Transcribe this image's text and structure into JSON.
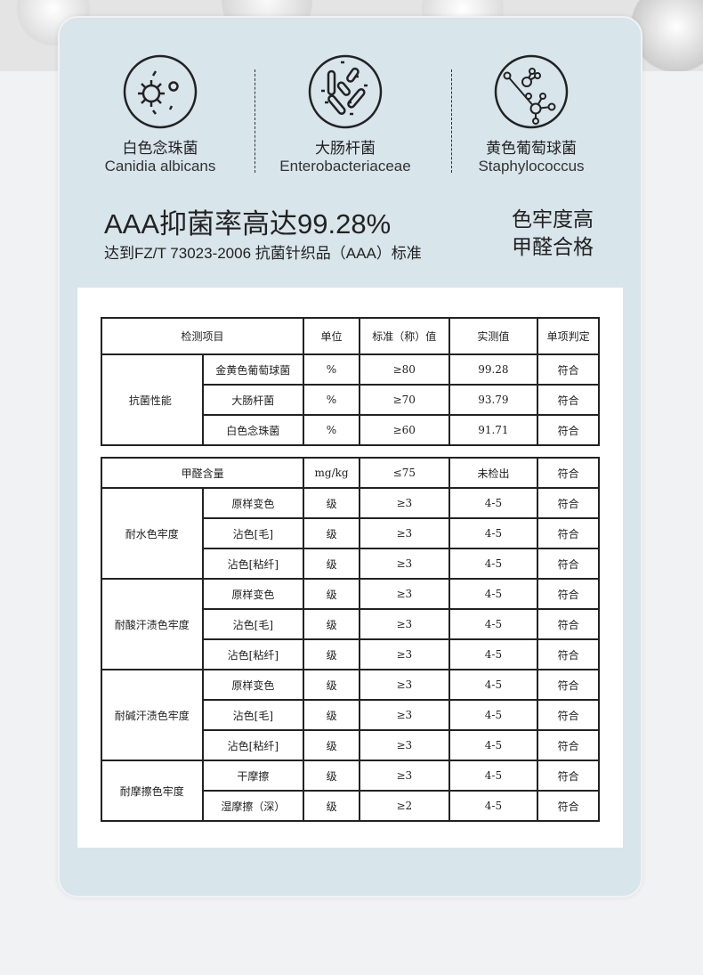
{
  "bacteria": [
    {
      "cn": "白色念珠菌",
      "en": "Canidia albicans",
      "icon": "fungus-icon"
    },
    {
      "cn": "大肠杆菌",
      "en": "Enterobacteriaceae",
      "icon": "bacilli-icon"
    },
    {
      "cn": "黄色葡萄球菌",
      "en": "Staphylococcus",
      "icon": "molecule-icon"
    }
  ],
  "headline": "AAA抑菌率高达99.28%",
  "subline": "达到FZ/T 73023-2006 抗菌针织品（AAA）标准",
  "right": [
    "色牢度高",
    "甲醛合格"
  ],
  "table1": {
    "headers": [
      "检测项目",
      "单位",
      "标准（称）值",
      "实测值",
      "单项判定"
    ],
    "group": "抗菌性能 ",
    "rows": [
      [
        "金黄色葡萄球菌",
        "%",
        "≥80",
        "99.28",
        "符合"
      ],
      [
        "大肠杆菌",
        "%",
        "≥70",
        "93.79",
        "符合"
      ],
      [
        "白色念珠菌",
        "%",
        "≥60",
        "91.71",
        "符合"
      ]
    ]
  },
  "table2": {
    "formaldehyde": [
      "甲醛含量",
      "mg/kg",
      "≤75",
      "未检出",
      "符合"
    ],
    "groups": [
      {
        "name": "耐水色牢度",
        "rows": [
          [
            "原样变色",
            "级",
            "≥3",
            "4-5",
            "符合"
          ],
          [
            "沾色[毛]",
            "级",
            "≥3",
            "4-5",
            "符合"
          ],
          [
            "沾色[粘纤]",
            "级",
            "≥3",
            "4-5",
            "符合"
          ]
        ]
      },
      {
        "name": "耐酸汗渍色牢度",
        "rows": [
          [
            "原样变色",
            "级",
            "≥3",
            "4-5",
            "符合"
          ],
          [
            "沾色[毛]",
            "级",
            "≥3",
            "4-5",
            "符合"
          ],
          [
            "沾色[粘纤]",
            "级",
            "≥3",
            "4-5",
            "符合"
          ]
        ]
      },
      {
        "name": "耐碱汗渍色牢度",
        "rows": [
          [
            "原样变色",
            "级",
            "≥3",
            "4-5",
            "符合"
          ],
          [
            "沾色[毛]",
            "级",
            "≥3",
            "4-5",
            "符合"
          ],
          [
            "沾色[粘纤]",
            "级",
            "≥3",
            "4-5",
            "符合"
          ]
        ]
      },
      {
        "name": "耐摩擦色牢度",
        "rows": [
          [
            "干摩擦",
            "级",
            "≥3",
            "4-5",
            "符合"
          ],
          [
            "湿摩擦（深）",
            "级",
            "≥2",
            "4-5",
            "符合"
          ]
        ]
      }
    ]
  }
}
